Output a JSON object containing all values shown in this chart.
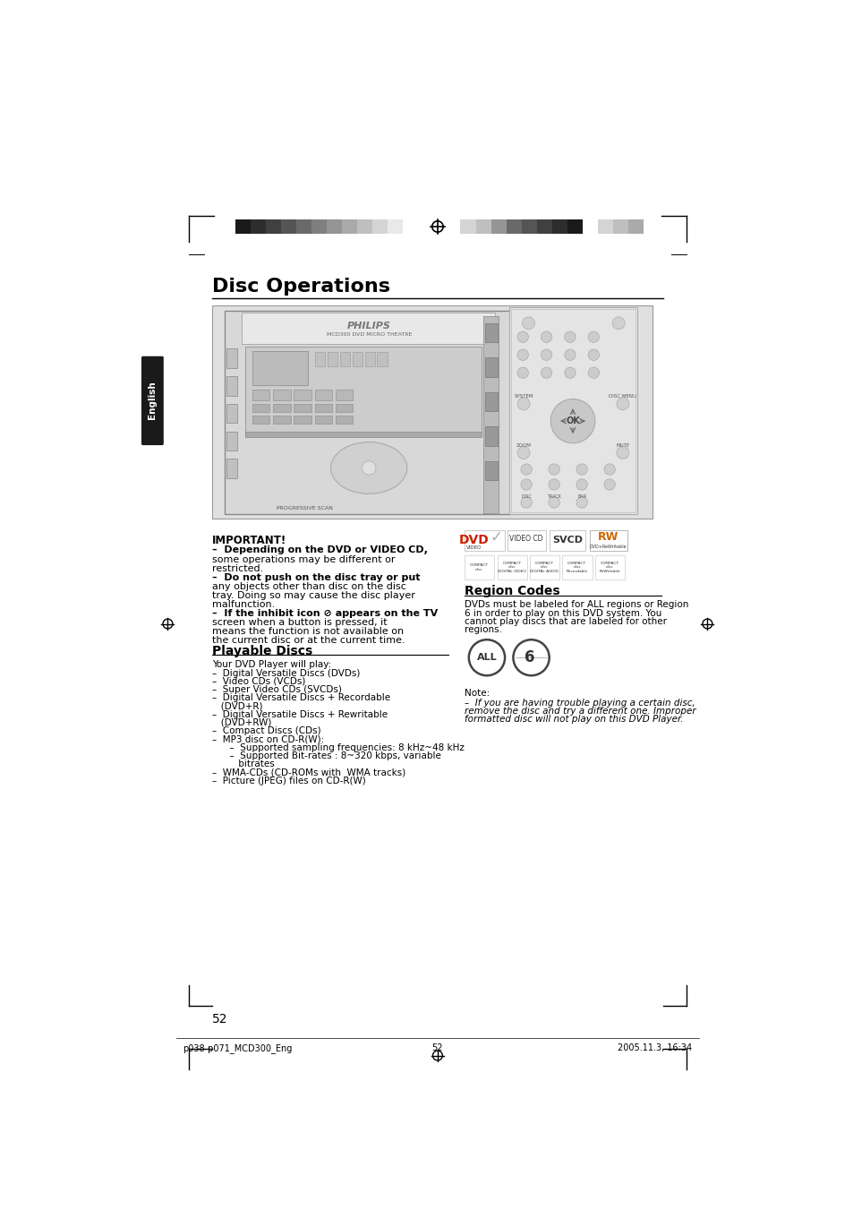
{
  "page_bg": "#ffffff",
  "header_bar_colors_left": [
    "#1a1a1a",
    "#2d2d2d",
    "#404040",
    "#555555",
    "#6a6a6a",
    "#7f7f7f",
    "#959595",
    "#aaaaaa",
    "#bfbfbf",
    "#d4d4d4",
    "#e9e9e9",
    "#ffffff"
  ],
  "header_bar_colors_right": [
    "#d4d4d4",
    "#bfbfbf",
    "#959595",
    "#6a6a6a",
    "#555555",
    "#404040",
    "#2d2d2d",
    "#1a1a1a",
    "#ffffff",
    "#d4d4d4",
    "#bfbfbf",
    "#aaaaaa"
  ],
  "title": "Disc Operations",
  "english_tab_bg": "#1a1a1a",
  "english_tab_text": "English",
  "section1_title": "IMPORTANT!",
  "section1_lines": [
    "–  Depending on the DVD or VIDEO CD,",
    "some operations may be different or",
    "restricted.",
    "–  Do not push on the disc tray or put",
    "any objects other than disc on the disc",
    "tray. Doing so may cause the disc player",
    "malfunction.",
    "–  If the inhibit icon ⊘ appears on the TV",
    "screen when a button is pressed, it",
    "means the function is not available on",
    "the current disc or at the current time."
  ],
  "section2_title": "Playable Discs",
  "section2_intro": "Your DVD Player will play:",
  "section2_items": [
    "–  Digital Versatile Discs (DVDs)",
    "–  Video CDs (VCDs)",
    "–  Super Video CDs (SVCDs)",
    "–  Digital Versatile Discs + Recordable",
    "   (DVD+R)",
    "–  Digital Versatile Discs + Rewritable",
    "   (DVD+RW)",
    "–  Compact Discs (CDs)",
    "–  MP3 disc on CD-R(W):",
    "      –  Supported sampling frequencies: 8 kHz~48 kHz",
    "      –  Supported Bit-rates : 8~320 kbps, variable",
    "         bitrates",
    "–  WMA-CDs (CD-ROMs with  WMA tracks)",
    "–  Picture (JPEG) files on CD-R(W)"
  ],
  "section3_title": "Region Codes",
  "section3_lines": [
    "DVDs must be labeled for ALL regions or Region",
    "6 in order to play on this DVD system. You",
    "cannot play discs that are labeled for other",
    "regions."
  ],
  "note_lines": [
    "Note:",
    "–  If you are having trouble playing a certain disc,",
    "remove the disc and try a different one. Improper",
    "formatted disc will not play on this DVD Player."
  ],
  "footer_left": "p038-p071_MCD300_Eng",
  "footer_center": "52",
  "footer_right": "2005.11.3, 16:34",
  "page_number": "52"
}
